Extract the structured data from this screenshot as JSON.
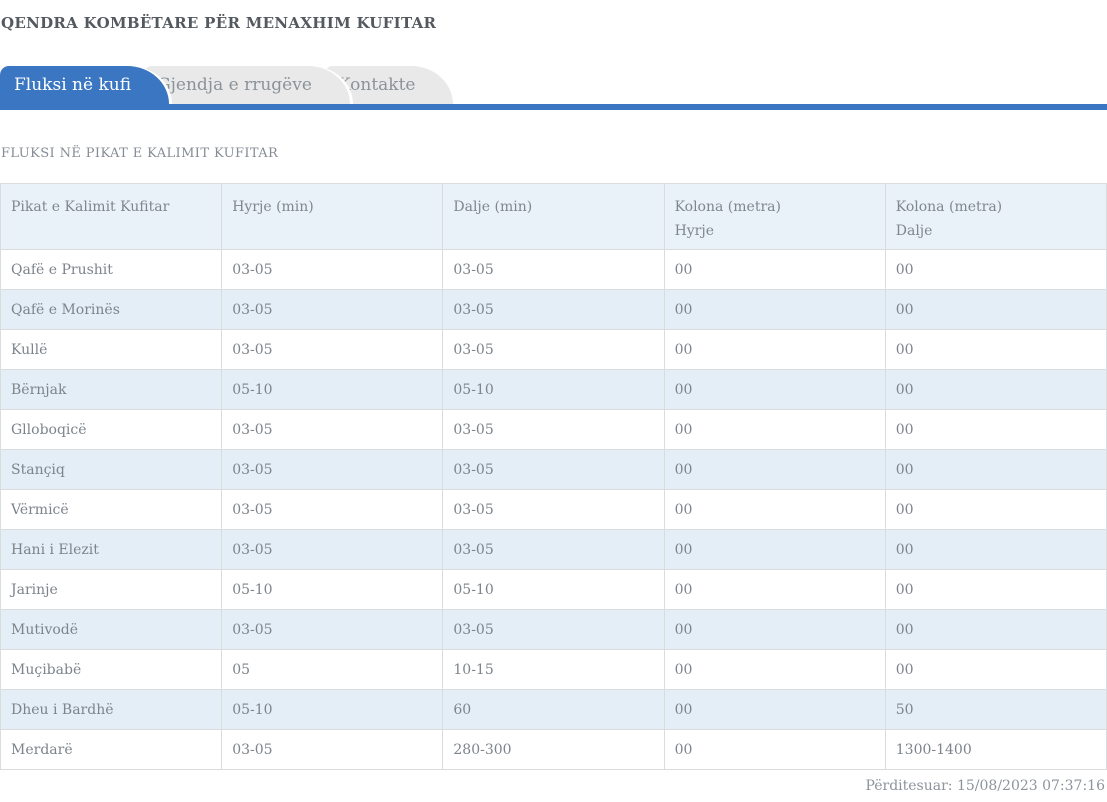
{
  "page": {
    "title": "QENDRA KOMBËTARE PËR MENAXHIM KUFITAR",
    "section_title": "FLUKSI NË PIKAT E KALIMIT KUFITAR",
    "updated": {
      "label": "Përditesuar:",
      "timestamp": "15/08/2023 07:37:16"
    }
  },
  "tabs": [
    {
      "id": "fluksi-ne-kufi",
      "label": "Fluksi në kufi",
      "active": true
    },
    {
      "id": "gjendja-e-rrugeve",
      "label": "Gjendja e rrugëve",
      "active": false
    },
    {
      "id": "kontakte",
      "label": "Kontakte",
      "active": false
    }
  ],
  "colors": {
    "accent_blue": "#3a76c2",
    "inactive_tab_bg": "#e9e9e9",
    "table_header_bg": "#eaf2f9",
    "table_stripe_bg": "#e3eef7",
    "border_gray": "#dbdcde"
  },
  "table": {
    "columns": [
      {
        "line1": "Pikat e Kalimit Kufitar",
        "line2": ""
      },
      {
        "line1": "Hyrje (min)",
        "line2": ""
      },
      {
        "line1": "Dalje (min)",
        "line2": ""
      },
      {
        "line1": "Kolona (metra)",
        "line2": "Hyrje"
      },
      {
        "line1": "Kolona (metra)",
        "line2": "Dalje"
      }
    ],
    "rows": [
      [
        "Qafë e Prushit",
        "03-05",
        "03-05",
        "00",
        "00"
      ],
      [
        "Qafë e Morinës",
        "03-05",
        "03-05",
        "00",
        "00"
      ],
      [
        "Kullë",
        "03-05",
        "03-05",
        "00",
        "00"
      ],
      [
        "Bërnjak",
        "05-10",
        "05-10",
        "00",
        "00"
      ],
      [
        "Glloboqicë",
        "03-05",
        "03-05",
        "00",
        "00"
      ],
      [
        "Stançiq",
        "03-05",
        "03-05",
        "00",
        "00"
      ],
      [
        "Vërmicë",
        "03-05",
        "03-05",
        "00",
        "00"
      ],
      [
        "Hani i Elezit",
        "03-05",
        "03-05",
        "00",
        "00"
      ],
      [
        "Jarinje",
        "05-10",
        "05-10",
        "00",
        "00"
      ],
      [
        "Mutivodë",
        "03-05",
        "03-05",
        "00",
        "00"
      ],
      [
        "Muçibabë",
        "05",
        "10-15",
        "00",
        "00"
      ],
      [
        "Dheu i Bardhë",
        "05-10",
        "60",
        "00",
        "50"
      ],
      [
        "Merdarë",
        "03-05",
        "280-300",
        "00",
        "1300-1400"
      ]
    ]
  }
}
